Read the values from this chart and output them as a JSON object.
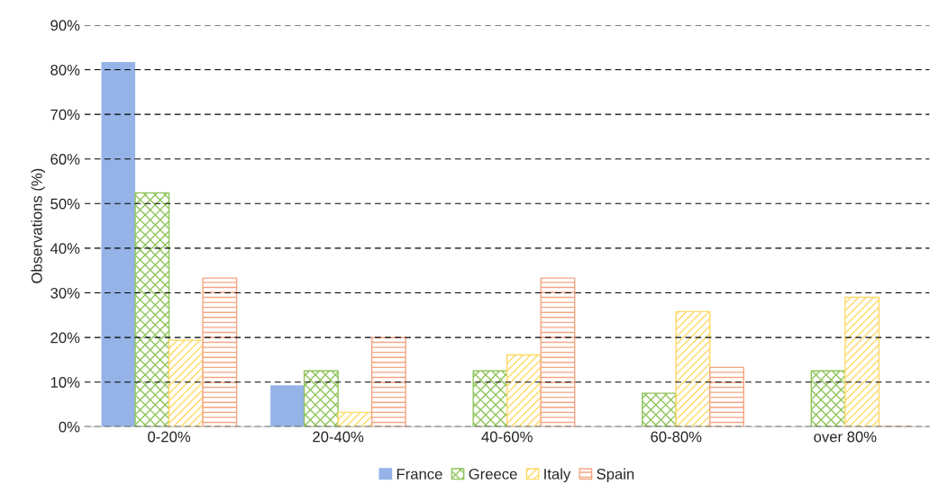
{
  "chart_data": {
    "type": "bar",
    "ylabel": "Observations (%)",
    "categories": [
      "0-20%",
      "20-40%",
      "40-60%",
      "60-80%",
      "over 80%"
    ],
    "series": [
      {
        "name": "France",
        "color": "#95b3e7",
        "values": [
          81.7,
          9.3,
          0,
          0,
          0
        ]
      },
      {
        "name": "Greece",
        "color": "#8fc45a",
        "values": [
          52.4,
          12.5,
          12.5,
          7.5,
          12.5
        ]
      },
      {
        "name": "Italy",
        "color": "#ffd966",
        "values": [
          19.4,
          3.2,
          16.1,
          25.8,
          29.0
        ]
      },
      {
        "name": "Spain",
        "color": "#f4a582",
        "values": [
          33.3,
          20.0,
          33.3,
          13.3,
          0
        ]
      }
    ],
    "ylim": [
      0,
      90
    ],
    "yticks": [
      {
        "value": 0,
        "label": "0%"
      },
      {
        "value": 10,
        "label": "10%"
      },
      {
        "value": 20,
        "label": "20%"
      },
      {
        "value": 30,
        "label": "30%"
      },
      {
        "value": 40,
        "label": "40%"
      },
      {
        "value": 50,
        "label": "50%"
      },
      {
        "value": 60,
        "label": "60%"
      },
      {
        "value": 70,
        "label": "70%"
      },
      {
        "value": 80,
        "label": "80%"
      },
      {
        "value": 90,
        "label": "90%"
      }
    ],
    "grid": "y",
    "legend": "bottom"
  }
}
